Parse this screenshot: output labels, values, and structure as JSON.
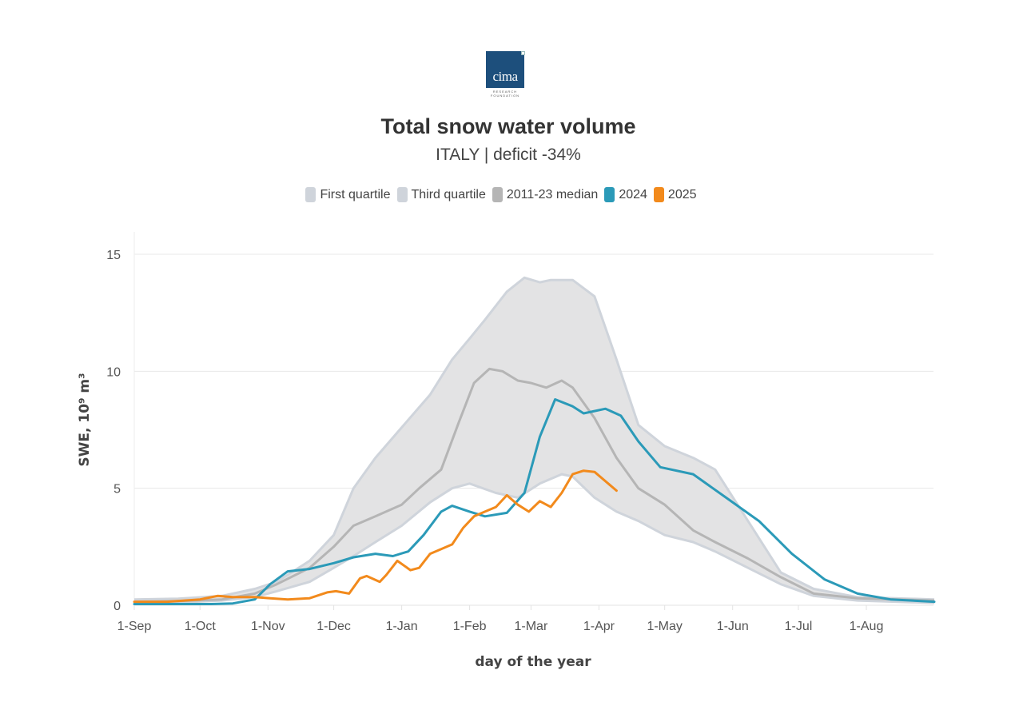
{
  "logo": {
    "name": "cima",
    "sub_line1": "RESEARCH",
    "sub_line2": "FOUNDATION"
  },
  "chart_data": {
    "type": "area",
    "title": "Total snow water volume",
    "subtitle": "ITALY | deficit -34%",
    "xlabel": "day of the year",
    "ylabel": "SWE, 10⁹ m³",
    "ylim": [
      0,
      15
    ],
    "yticks": [
      0,
      5,
      10,
      15
    ],
    "xlim": [
      0,
      365
    ],
    "xticks": [
      {
        "day": 0,
        "label": "1-Sep"
      },
      {
        "day": 30,
        "label": "1-Oct"
      },
      {
        "day": 61,
        "label": "1-Nov"
      },
      {
        "day": 91,
        "label": "1-Dec"
      },
      {
        "day": 122,
        "label": "1-Jan"
      },
      {
        "day": 153,
        "label": "1-Feb"
      },
      {
        "day": 181,
        "label": "1-Mar"
      },
      {
        "day": 212,
        "label": "1-Apr"
      },
      {
        "day": 242,
        "label": "1-May"
      },
      {
        "day": 273,
        "label": "1-Jun"
      },
      {
        "day": 303,
        "label": "1-Jul"
      },
      {
        "day": 334,
        "label": "1-Aug"
      }
    ],
    "grid": true,
    "legend_position": "top-center",
    "legend": [
      {
        "name": "First quartile",
        "color": "#cfd4db"
      },
      {
        "name": "Third quartile",
        "color": "#cfd4db"
      },
      {
        "name": "2011-23 median",
        "color": "#b5b5b5"
      },
      {
        "name": "2024",
        "color": "#2b9ab8"
      },
      {
        "name": "2025",
        "color": "#f28a1c"
      }
    ],
    "series": [
      {
        "name": "Third quartile",
        "color": "#cfd4db",
        "x": [
          0,
          20,
          40,
          55,
          65,
          80,
          91,
          100,
          110,
          122,
          135,
          145,
          153,
          160,
          170,
          178,
          185,
          190,
          200,
          210,
          220,
          230,
          242,
          255,
          265,
          280,
          295,
          310,
          330,
          365
        ],
        "y": [
          0.25,
          0.28,
          0.4,
          0.7,
          1.0,
          1.9,
          3.0,
          5.0,
          6.3,
          7.6,
          9.0,
          10.5,
          11.4,
          12.2,
          13.4,
          14.0,
          13.8,
          13.9,
          13.9,
          13.2,
          10.5,
          7.7,
          6.8,
          6.3,
          5.8,
          3.6,
          1.4,
          0.7,
          0.35,
          0.25
        ]
      },
      {
        "name": "First quartile",
        "color": "#cfd4db",
        "x": [
          0,
          20,
          40,
          55,
          65,
          80,
          91,
          100,
          110,
          122,
          135,
          145,
          153,
          165,
          175,
          185,
          195,
          200,
          210,
          220,
          230,
          242,
          255,
          265,
          280,
          295,
          310,
          330,
          365
        ],
        "y": [
          0.1,
          0.12,
          0.2,
          0.35,
          0.6,
          1.0,
          1.6,
          2.1,
          2.7,
          3.4,
          4.4,
          5.0,
          5.2,
          4.8,
          4.6,
          5.2,
          5.6,
          5.5,
          4.6,
          4.0,
          3.6,
          3.0,
          2.7,
          2.3,
          1.6,
          0.9,
          0.4,
          0.2,
          0.1
        ]
      },
      {
        "name": "2011-23 median",
        "color": "#b5b5b5",
        "x": [
          0,
          20,
          40,
          55,
          65,
          80,
          91,
          100,
          110,
          122,
          130,
          140,
          148,
          155,
          162,
          168,
          175,
          181,
          188,
          195,
          200,
          210,
          220,
          230,
          242,
          255,
          265,
          280,
          295,
          310,
          330,
          365
        ],
        "y": [
          0.15,
          0.18,
          0.25,
          0.5,
          0.9,
          1.6,
          2.5,
          3.4,
          3.8,
          4.3,
          5.0,
          5.8,
          7.8,
          9.5,
          10.1,
          10.0,
          9.6,
          9.5,
          9.3,
          9.6,
          9.3,
          8.0,
          6.3,
          5.0,
          4.3,
          3.2,
          2.7,
          2.0,
          1.2,
          0.5,
          0.3,
          0.2
        ]
      },
      {
        "name": "2024",
        "color": "#2b9ab8",
        "x": [
          0,
          20,
          35,
          45,
          55,
          62,
          70,
          80,
          91,
          100,
          110,
          118,
          125,
          132,
          140,
          145,
          153,
          160,
          170,
          178,
          185,
          192,
          200,
          205,
          210,
          215,
          222,
          230,
          240,
          255,
          270,
          285,
          300,
          315,
          330,
          345,
          365
        ],
        "y": [
          0.05,
          0.05,
          0.05,
          0.08,
          0.25,
          0.9,
          1.45,
          1.55,
          1.8,
          2.05,
          2.2,
          2.1,
          2.3,
          3.0,
          4.0,
          4.25,
          4.0,
          3.8,
          3.95,
          4.8,
          7.2,
          8.8,
          8.5,
          8.2,
          8.3,
          8.4,
          8.1,
          7.0,
          5.9,
          5.6,
          4.6,
          3.6,
          2.2,
          1.1,
          0.5,
          0.25,
          0.15
        ]
      },
      {
        "name": "2025",
        "color": "#f28a1c",
        "x": [
          0,
          15,
          30,
          38,
          45,
          55,
          62,
          70,
          80,
          88,
          92,
          98,
          103,
          106,
          112,
          115,
          120,
          126,
          130,
          135,
          140,
          145,
          150,
          155,
          160,
          165,
          170,
          175,
          180,
          185,
          190,
          195,
          200,
          205,
          210,
          215,
          220
        ],
        "y": [
          0.15,
          0.15,
          0.25,
          0.4,
          0.35,
          0.35,
          0.3,
          0.25,
          0.3,
          0.55,
          0.6,
          0.5,
          1.15,
          1.25,
          1.0,
          1.3,
          1.9,
          1.5,
          1.6,
          2.2,
          2.4,
          2.6,
          3.3,
          3.8,
          4.0,
          4.2,
          4.7,
          4.3,
          4.0,
          4.45,
          4.2,
          4.8,
          5.6,
          5.75,
          5.7,
          5.3,
          4.9
        ]
      }
    ]
  }
}
